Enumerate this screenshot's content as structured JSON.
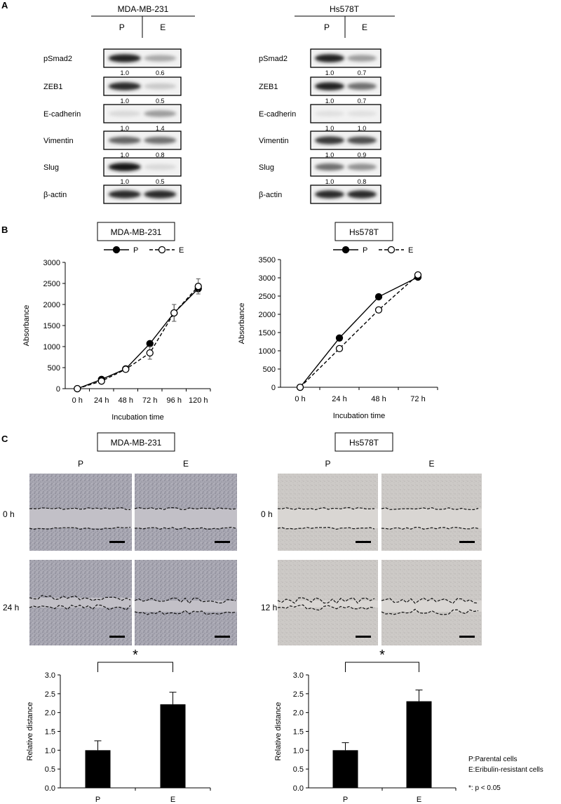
{
  "panels": {
    "a": {
      "letter": "A"
    },
    "b": {
      "letter": "B"
    },
    "c": {
      "letter": "C"
    }
  },
  "western": [
    {
      "cell_line": "MDA-MB-231",
      "lanes": [
        "P",
        "E"
      ],
      "rows": [
        {
          "protein": "pSmad2",
          "values": [
            "1.0",
            "0.6"
          ],
          "intensity": [
            0.9,
            0.3
          ]
        },
        {
          "protein": "ZEB1",
          "values": [
            "1.0",
            "0.5"
          ],
          "intensity": [
            0.85,
            0.15
          ]
        },
        {
          "protein": "E-cadherin",
          "values": [
            "1.0",
            "1.4"
          ],
          "intensity": [
            0.08,
            0.35
          ]
        },
        {
          "protein": "Vimentin",
          "values": [
            "1.0",
            "0.8"
          ],
          "intensity": [
            0.6,
            0.55
          ]
        },
        {
          "protein": "Slug",
          "values": [
            "1.0",
            "0.5"
          ],
          "intensity": [
            0.95,
            0.08
          ]
        },
        {
          "protein": "β-actin",
          "values": [],
          "intensity": [
            0.85,
            0.85
          ]
        }
      ]
    },
    {
      "cell_line": "Hs578T",
      "lanes": [
        "P",
        "E"
      ],
      "rows": [
        {
          "protein": "pSmad2",
          "values": [
            "1.0",
            "0.7"
          ],
          "intensity": [
            0.9,
            0.35
          ]
        },
        {
          "protein": "ZEB1",
          "values": [
            "1.0",
            "0.7"
          ],
          "intensity": [
            0.9,
            0.55
          ]
        },
        {
          "protein": "E-cadherin",
          "values": [
            "1.0",
            "1.0"
          ],
          "intensity": [
            0.05,
            0.05
          ]
        },
        {
          "protein": "Vimentin",
          "values": [
            "1.0",
            "0.9"
          ],
          "intensity": [
            0.8,
            0.7
          ]
        },
        {
          "protein": "Slug",
          "values": [
            "1.0",
            "0.8"
          ],
          "intensity": [
            0.55,
            0.4
          ]
        },
        {
          "protein": "β-actin",
          "values": [],
          "intensity": [
            0.85,
            0.85
          ]
        }
      ]
    }
  ],
  "chart_data": [
    {
      "type": "line",
      "title": "MDA-MB-231",
      "xlabel": "Incubation time",
      "ylabel": "Absorbance",
      "categories": [
        "0 h",
        "24 h",
        "48 h",
        "72 h",
        "96 h",
        "120 h"
      ],
      "ylim": [
        0,
        3000
      ],
      "yticks": [
        0,
        500,
        1000,
        1500,
        2000,
        2500,
        3000
      ],
      "legend": "top",
      "series": [
        {
          "name": "P",
          "style": "solid-filled",
          "values": [
            0,
            220,
            470,
            1070,
            1800,
            2380
          ],
          "errors": [
            0,
            30,
            40,
            60,
            200,
            80
          ]
        },
        {
          "name": "E",
          "style": "dashed-open",
          "values": [
            0,
            180,
            460,
            850,
            1800,
            2430
          ],
          "errors": [
            0,
            30,
            40,
            150,
            200,
            180
          ]
        }
      ]
    },
    {
      "type": "line",
      "title": "Hs578T",
      "xlabel": "Incubation time",
      "ylabel": "Absorbance",
      "categories": [
        "0 h",
        "24 h",
        "48 h",
        "72 h"
      ],
      "ylim": [
        0,
        3500
      ],
      "yticks": [
        0,
        500,
        1000,
        1500,
        2000,
        2500,
        3000,
        3500
      ],
      "legend": "top",
      "series": [
        {
          "name": "P",
          "style": "solid-filled",
          "values": [
            0,
            1350,
            2480,
            3020
          ],
          "errors": [
            0,
            20,
            30,
            30
          ]
        },
        {
          "name": "E",
          "style": "dashed-open",
          "values": [
            0,
            1060,
            2120,
            3080
          ],
          "errors": [
            0,
            30,
            40,
            30
          ]
        }
      ]
    },
    {
      "type": "bar",
      "title": "",
      "ylabel": "Relative distance",
      "categories": [
        "P",
        "E"
      ],
      "values": [
        1.0,
        2.22
      ],
      "errors": [
        0.25,
        0.32
      ],
      "ylim": [
        0,
        3.0
      ],
      "yticks": [
        "0.0",
        "0.5",
        "1.0",
        "1.5",
        "2.0",
        "2.5",
        "3.0"
      ],
      "significance": "*"
    },
    {
      "type": "bar",
      "title": "",
      "ylabel": "Relative distance",
      "categories": [
        "P",
        "E"
      ],
      "values": [
        1.0,
        2.3
      ],
      "errors": [
        0.2,
        0.3
      ],
      "ylim": [
        0,
        3.0
      ],
      "yticks": [
        "0.0",
        "0.5",
        "1.0",
        "1.5",
        "2.0",
        "2.5",
        "3.0"
      ],
      "significance": "*"
    }
  ],
  "wound": [
    {
      "cell_line": "MDA-MB-231",
      "columns": [
        "P",
        "E"
      ],
      "times": [
        "0 h",
        "24 h"
      ],
      "tone": "#a9a8b3"
    },
    {
      "cell_line": "Hs578T",
      "columns": [
        "P",
        "E"
      ],
      "times": [
        "0 h",
        "12 h"
      ],
      "tone": "#c9c6c3"
    }
  ],
  "footnotes": {
    "p_label": "P:Parental cells",
    "e_label": "E:Eribulin-resistant cells",
    "sig": "*: p < 0.05"
  }
}
